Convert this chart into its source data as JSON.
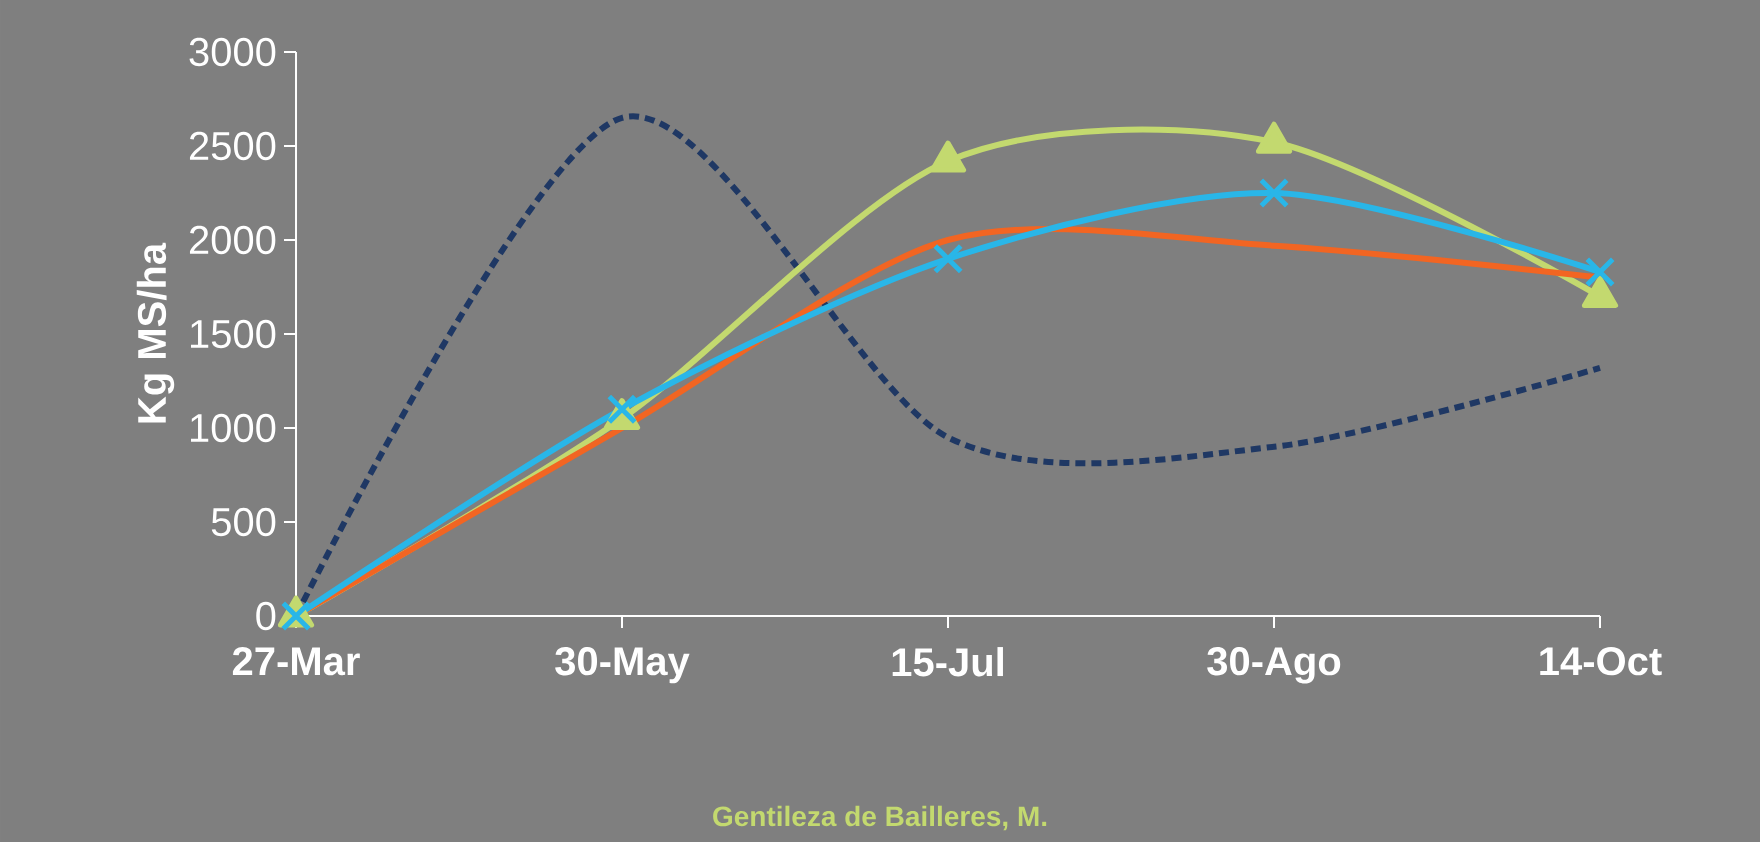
{
  "chart_data": {
    "type": "line",
    "ylabel": "Kg MS/ha",
    "categories": [
      "27-Mar",
      "30-May",
      "15-Jul",
      "30-Ago",
      "14-Oct"
    ],
    "ylim": [
      0,
      3000
    ],
    "yticks": [
      0,
      500,
      1000,
      1500,
      2000,
      2500,
      3000
    ],
    "series": [
      {
        "color": "#1f3864",
        "values": [
          0,
          2650,
          950,
          900,
          1320
        ],
        "marker": "none",
        "line_style": "dashed"
      },
      {
        "color": "#c3d96f",
        "values": [
          0,
          1050,
          2420,
          2520,
          1700
        ],
        "marker": "triangle",
        "line_style": "solid"
      },
      {
        "color": "#f26522",
        "values": [
          0,
          1000,
          2000,
          1970,
          1800
        ],
        "marker": "none",
        "line_style": "solid"
      },
      {
        "color": "#29b6e8",
        "values": [
          0,
          1100,
          1900,
          2250,
          1830
        ],
        "marker": "cross",
        "line_style": "solid"
      }
    ],
    "annotations": [
      "Gentileza de  Bailleres, M."
    ]
  }
}
